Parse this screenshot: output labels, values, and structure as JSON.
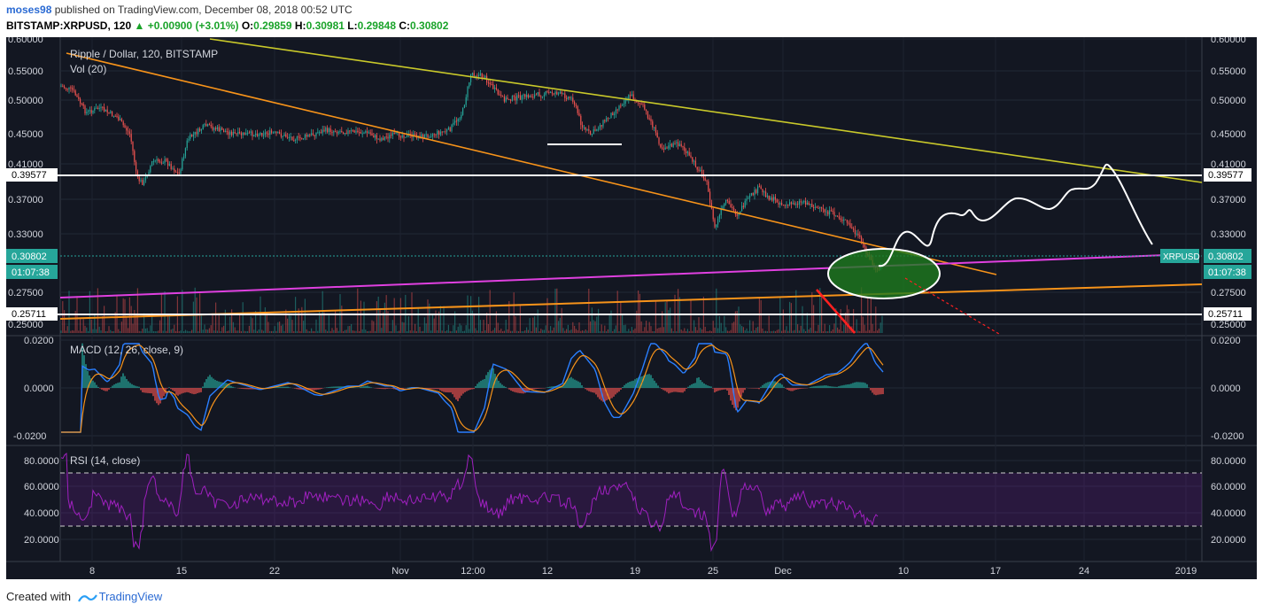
{
  "header": {
    "user": "moses98",
    "published_text": " published on TradingView.com, December 08, 2018 00:52 UTC",
    "symbol": "BITSTAMP:XRPUSD, 120",
    "change": "+0.00900 (+3.01%)",
    "o_label": "O:",
    "o": "0.29859",
    "h_label": "H:",
    "h": "0.30981",
    "l_label": "L:",
    "l": "0.29848",
    "c_label": "C:",
    "c": "0.30802"
  },
  "price_pane": {
    "title": "Ripple / Dollar, 120, BITSTAMP",
    "volume_label": "Vol (20)",
    "y_labels": [
      "0.60000",
      "0.55000",
      "0.50000",
      "0.45000",
      "0.41000",
      "0.37000",
      "0.33000",
      "0.27500",
      "0.25000"
    ],
    "y_values": [
      0.6,
      0.55,
      0.5,
      0.45,
      0.41,
      0.37,
      0.33,
      0.275,
      0.25
    ],
    "badge_upper": "0.39577",
    "badge_lower": "0.25711",
    "badge_price": "0.30802",
    "badge_timer": "01:07:38",
    "badge_symbol": "XRPUSD"
  },
  "macd_pane": {
    "title": "MACD (12, 26, close, 9)",
    "y_labels": [
      "0.0200",
      "0.0000",
      "-0.0200"
    ]
  },
  "rsi_pane": {
    "title": "RSI (14, close)",
    "y_labels": [
      "80.0000",
      "60.0000",
      "40.0000",
      "20.0000"
    ]
  },
  "x_axis": {
    "labels": [
      "8",
      "15",
      "22",
      "Nov",
      "12:00",
      "12",
      "19",
      "25",
      "Dec",
      "10",
      "17",
      "24",
      "2019"
    ]
  },
  "colors": {
    "background": "#131722",
    "up": "#26a69a",
    "down": "#ef5350",
    "trend_yellow": "#c9c92a",
    "trend_orange": "#f7931a",
    "trend_magenta": "#e040e0",
    "ellipse_fill": "#1e7a1e",
    "rsi": "#a020c0",
    "macd": "#2a7fff",
    "signal": "#f7931a"
  },
  "footer": {
    "created_with": "Created with",
    "brand": "TradingView"
  }
}
